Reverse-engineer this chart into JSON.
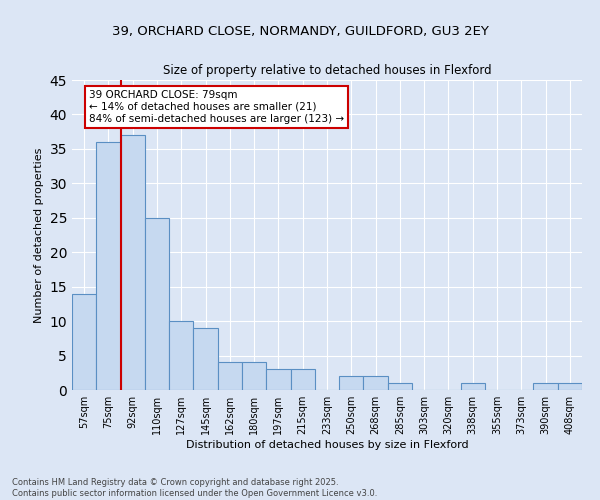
{
  "title_line1": "39, ORCHARD CLOSE, NORMANDY, GUILDFORD, GU3 2EY",
  "title_line2": "Size of property relative to detached houses in Flexford",
  "xlabel": "Distribution of detached houses by size in Flexford",
  "ylabel": "Number of detached properties",
  "categories": [
    "57sqm",
    "75sqm",
    "92sqm",
    "110sqm",
    "127sqm",
    "145sqm",
    "162sqm",
    "180sqm",
    "197sqm",
    "215sqm",
    "233sqm",
    "250sqm",
    "268sqm",
    "285sqm",
    "303sqm",
    "320sqm",
    "338sqm",
    "355sqm",
    "373sqm",
    "390sqm",
    "408sqm"
  ],
  "values": [
    14,
    36,
    37,
    25,
    10,
    9,
    4,
    4,
    3,
    3,
    0,
    2,
    2,
    1,
    0,
    0,
    1,
    0,
    0,
    1,
    1
  ],
  "bar_color": "#c6d9f0",
  "bar_edge_color": "#5a8fc3",
  "background_color": "#dce6f5",
  "grid_color": "#ffffff",
  "reference_line_x": 1.5,
  "reference_line_color": "#cc0000",
  "annotation_text": "39 ORCHARD CLOSE: 79sqm\n← 14% of detached houses are smaller (21)\n84% of semi-detached houses are larger (123) →",
  "annotation_box_color": "#cc0000",
  "ylim": [
    0,
    45
  ],
  "yticks": [
    0,
    5,
    10,
    15,
    20,
    25,
    30,
    35,
    40,
    45
  ],
  "footnote_line1": "Contains HM Land Registry data © Crown copyright and database right 2025.",
  "footnote_line2": "Contains public sector information licensed under the Open Government Licence v3.0."
}
